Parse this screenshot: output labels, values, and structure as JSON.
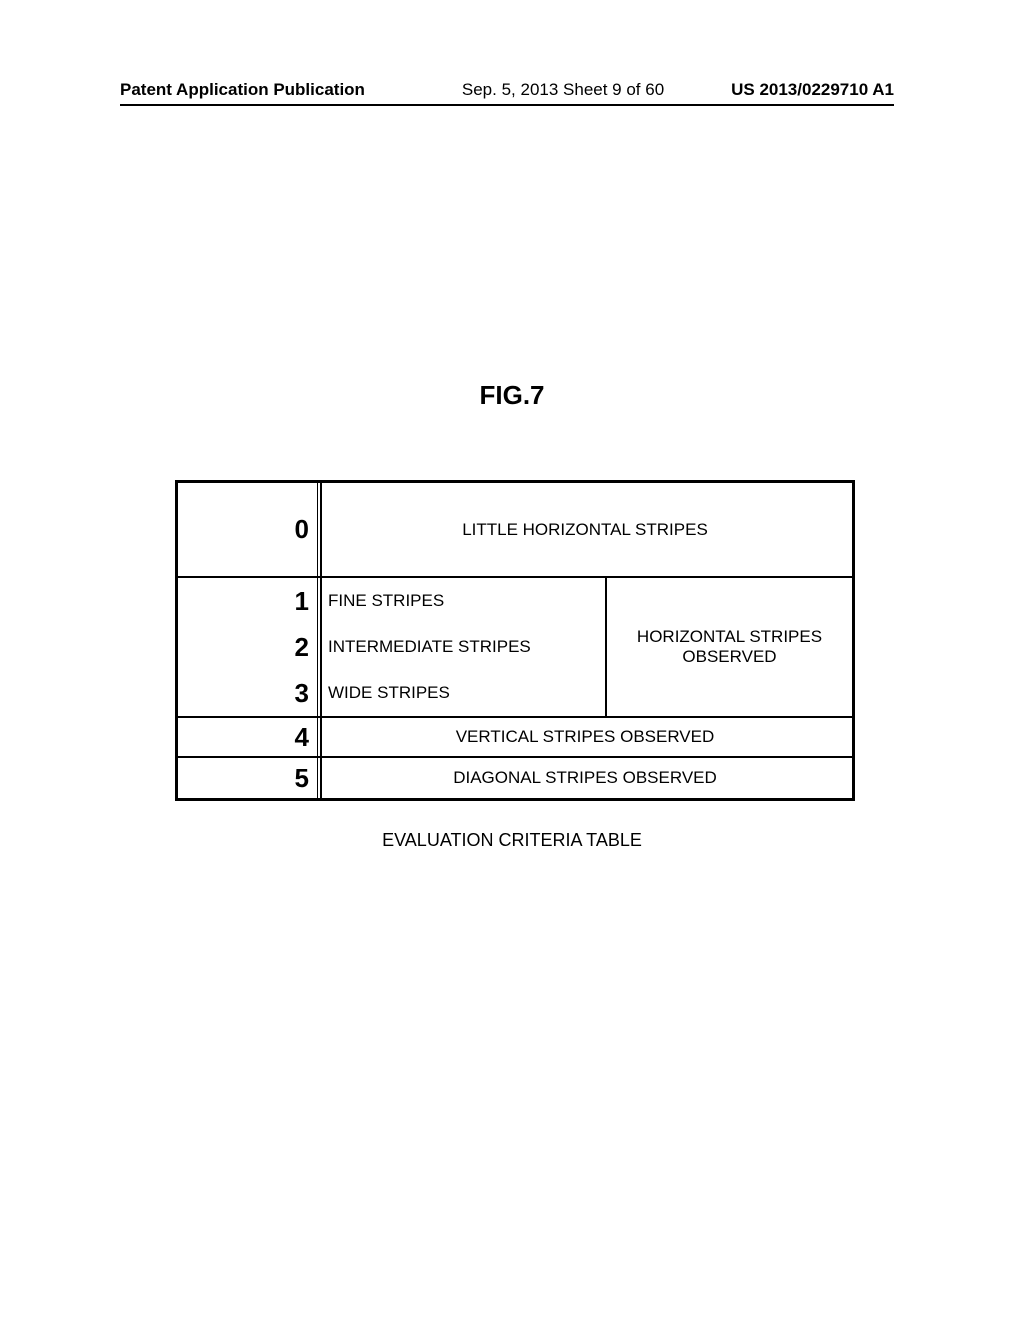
{
  "header": {
    "left": "Patent Application Publication",
    "center": "Sep. 5, 2013  Sheet 9 of 60",
    "right": "US 2013/0229710 A1"
  },
  "figure_label": "FIG.7",
  "table": {
    "rows": [
      {
        "num": "0",
        "desc": "LITTLE HORIZONTAL STRIPES"
      },
      {
        "num": "1",
        "desc": "FINE STRIPES"
      },
      {
        "num": "2",
        "desc": "INTERMEDIATE STRIPES"
      },
      {
        "num": "3",
        "desc": "WIDE STRIPES"
      },
      {
        "num": "4",
        "desc": "VERTICAL STRIPES OBSERVED"
      },
      {
        "num": "5",
        "desc": "DIAGONAL STRIPES OBSERVED"
      }
    ],
    "mid_right_label": "HORIZONTAL STRIPES OBSERVED",
    "caption": "EVALUATION CRITERIA TABLE"
  }
}
